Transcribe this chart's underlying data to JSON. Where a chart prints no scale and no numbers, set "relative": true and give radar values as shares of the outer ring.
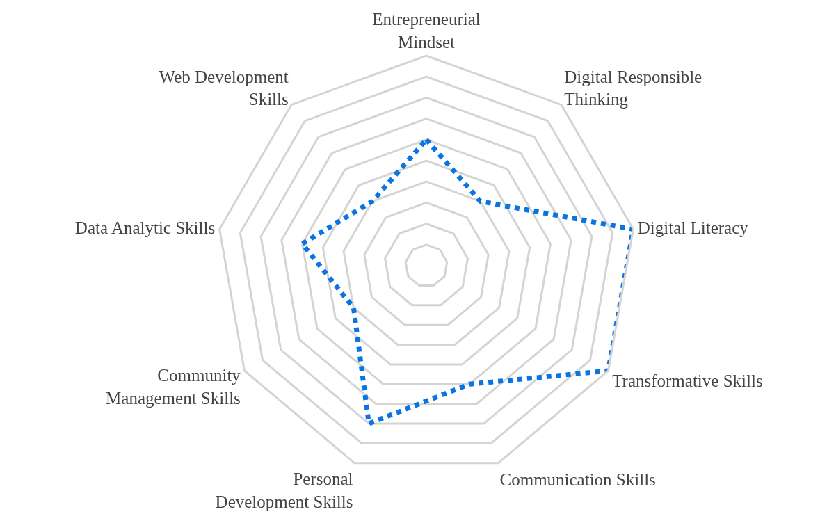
{
  "chart_data": {
    "type": "radar",
    "relative": true,
    "categories": [
      "Entrepreneurial Mindset",
      "Digital Responsible Thinking",
      "Digital Literacy",
      "Transformative Skills",
      "Communication Skills",
      "Personal Development Skills",
      "Community Management Skills",
      "Data Analytic Skills",
      "Web Development Skills"
    ],
    "series": [
      {
        "color": "#0a74e0",
        "values": [
          0.6,
          0.4,
          1.0,
          1.0,
          0.6,
          0.8,
          0.4,
          0.6,
          0.4
        ]
      }
    ],
    "line_style": "dotted",
    "grid": true
  }
}
